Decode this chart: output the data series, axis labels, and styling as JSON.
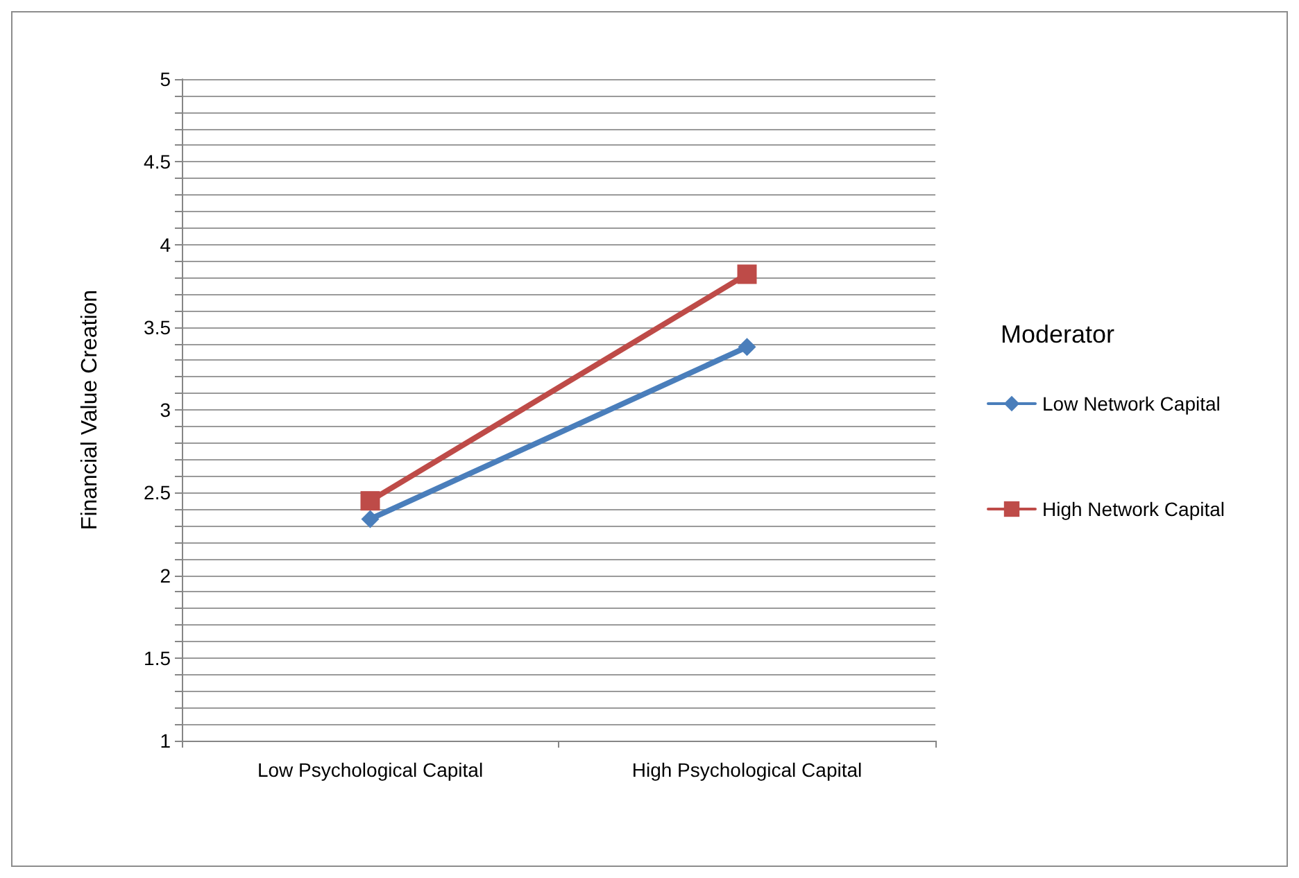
{
  "chart_data": {
    "type": "line",
    "ylabel": "Financial Value Creation",
    "legend_title": "Moderator",
    "categories": [
      "Low Psychological Capital",
      "High Psychological Capital"
    ],
    "series": [
      {
        "name": "Low Network Capital",
        "color": "#4a7ebb",
        "marker": "diamond",
        "values": [
          2.34,
          3.38
        ]
      },
      {
        "name": "High Network Capital",
        "color": "#be4b48",
        "marker": "square",
        "values": [
          2.45,
          3.82
        ]
      }
    ],
    "ylim": [
      1,
      5
    ],
    "yticks": [
      1,
      {
        "value": 1.1,
        "label": null
      },
      {
        "value": 1.2,
        "label": null
      },
      {
        "value": 1.3,
        "label": null
      },
      {
        "value": 1.4,
        "label": null
      },
      1.5,
      {
        "value": 1.6,
        "label": null
      },
      {
        "value": 1.7,
        "label": null
      },
      {
        "value": 1.8,
        "label": null
      },
      {
        "value": 1.9,
        "label": null
      },
      2,
      {
        "value": 2.1,
        "label": null
      },
      {
        "value": 2.2,
        "label": null
      },
      {
        "value": 2.3,
        "label": null
      },
      {
        "value": 2.4,
        "label": null
      },
      2.5,
      {
        "value": 2.6,
        "label": null
      },
      {
        "value": 2.7,
        "label": null
      },
      {
        "value": 2.8,
        "label": null
      },
      {
        "value": 2.9,
        "label": null
      },
      3,
      {
        "value": 3.1,
        "label": null
      },
      {
        "value": 3.2,
        "label": null
      },
      {
        "value": 3.3,
        "label": null
      },
      {
        "value": 3.4,
        "label": null
      },
      3.5,
      {
        "value": 3.6,
        "label": null
      },
      {
        "value": 3.7,
        "label": null
      },
      {
        "value": 3.8,
        "label": null
      },
      {
        "value": 3.9,
        "label": null
      },
      4,
      {
        "value": 4.1,
        "label": null
      },
      {
        "value": 4.2,
        "label": null
      },
      {
        "value": 4.3,
        "label": null
      },
      {
        "value": 4.4,
        "label": null
      },
      4.5,
      {
        "value": 4.6,
        "label": null
      },
      {
        "value": 4.7,
        "label": null
      },
      {
        "value": 4.8,
        "label": null
      },
      {
        "value": 4.9,
        "label": null
      },
      5
    ],
    "grid": "y",
    "legend": "right",
    "line_style": "solid"
  }
}
